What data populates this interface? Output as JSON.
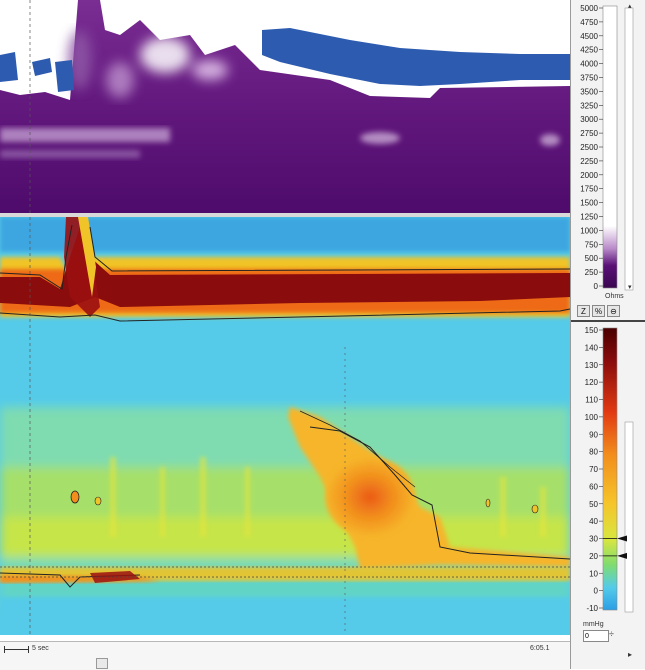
{
  "impedance_scale": {
    "ticks": [
      "5000",
      "4750",
      "4500",
      "4250",
      "4000",
      "3750",
      "3500",
      "3250",
      "3000",
      "2750",
      "2500",
      "2250",
      "2000",
      "1750",
      "1500",
      "1250",
      "1000",
      "750",
      "500",
      "250",
      "0"
    ],
    "unit": "Ohms",
    "tool_buttons": [
      "Z",
      "%",
      "⊖"
    ]
  },
  "pressure_scale": {
    "ticks": [
      "150",
      "140",
      "130",
      "120",
      "110",
      "100",
      "90",
      "80",
      "70",
      "60",
      "50",
      "40",
      "30",
      "20",
      "10",
      "0",
      "-10"
    ],
    "unit": "mmHg",
    "threshold_value": "0",
    "marker_values": [
      30,
      20
    ]
  },
  "timeline": {
    "scale_label": "5 sec",
    "time_label": "6:05.1"
  },
  "colors": {
    "impedance_high": "#5a1078",
    "impedance_blue": "#2d5bb0",
    "pressure_low": "#4fc8ea",
    "pressure_mid": "#b6e25a",
    "pressure_high": "#f08a1c",
    "pressure_max": "#8a0c0c"
  }
}
